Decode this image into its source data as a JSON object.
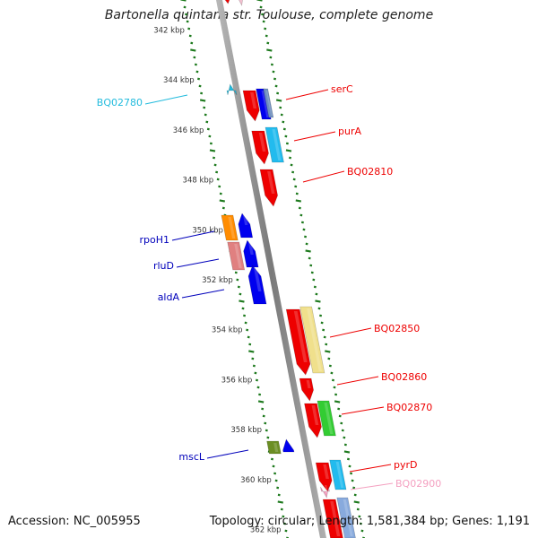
{
  "title": "Bartonella quintana str. Toulouse, complete genome",
  "footer": {
    "accession_label": "Accession:",
    "accession": "NC_005955",
    "topology_label": "Topology:",
    "topology": "circular",
    "length_label": "Length:",
    "length": "1,581,384 bp",
    "genes_label": "Genes:",
    "genes": "1,191"
  },
  "ticks": [
    "342 kbp",
    "344 kbp",
    "346 kbp",
    "348 kbp",
    "350 kbp",
    "352 kbp",
    "354 kbp",
    "356 kbp",
    "358 kbp",
    "360 kbp",
    "362 kbp"
  ],
  "colors": {
    "backbone": "#8c8c8c",
    "tick_marks": "#1e7a1e",
    "label_red": "#ee0000",
    "label_blue": "#0000bb",
    "label_cyan": "#22bbdd",
    "label_pink": "#f4a0c0"
  },
  "genes": [
    {
      "name": "serC",
      "strand": "+",
      "color": "#ee0000",
      "label_color": "#ee0000"
    },
    {
      "name": "purA",
      "strand": "+",
      "color": "#ee0000",
      "label_color": "#ee0000"
    },
    {
      "name": "BQ02810",
      "strand": "+",
      "color": "#ee0000",
      "label_color": "#ee0000"
    },
    {
      "name": "BQ02850",
      "strand": "+",
      "color": "#ee0000",
      "label_color": "#ee0000"
    },
    {
      "name": "BQ02860",
      "strand": "+",
      "color": "#ee0000",
      "label_color": "#ee0000"
    },
    {
      "name": "BQ02870",
      "strand": "+",
      "color": "#ee0000",
      "label_color": "#ee0000"
    },
    {
      "name": "pyrD",
      "strand": "+",
      "color": "#ee0000",
      "label_color": "#ee0000"
    },
    {
      "name": "BQ02900",
      "strand": "+",
      "color": "#f4a0c0",
      "label_color": "#f4a0c0"
    },
    {
      "name": "BQ02780",
      "strand": "-",
      "color": "#22bbdd",
      "label_color": "#22bbdd"
    },
    {
      "name": "rpoH1",
      "strand": "-",
      "color": "#ff8c00",
      "label_color": "#0000bb"
    },
    {
      "name": "rluD",
      "strand": "-",
      "color": "#e08080",
      "label_color": "#0000bb"
    },
    {
      "name": "aldA",
      "strand": "-",
      "color": "#0000ee",
      "label_color": "#0000bb"
    },
    {
      "name": "mscL",
      "strand": "-",
      "color": "#6b8e23",
      "label_color": "#0000bb"
    }
  ]
}
